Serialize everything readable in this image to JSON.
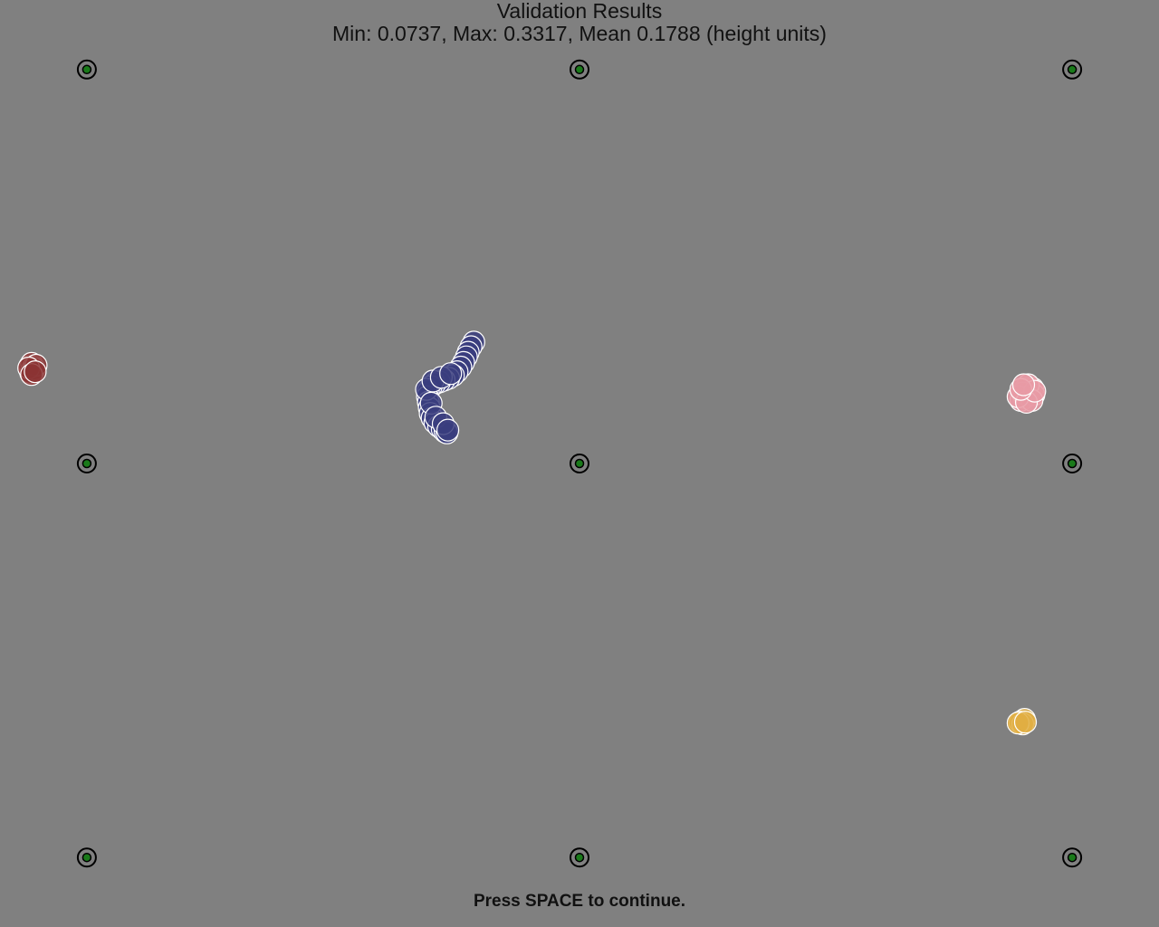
{
  "screen": {
    "title": "Validation Results",
    "stats": "Min: 0.0737, Max: 0.3317, Mean 0.1788 (height units)",
    "continue_prompt": "Press SPACE to continue."
  },
  "colors": {
    "background": "#808080",
    "target_ring": "#000000",
    "target_center": "#1a7a1a",
    "sample_outline": "#ffffff"
  },
  "chart_data": {
    "type": "scatter",
    "title": "",
    "xlabel": "",
    "ylabel": "",
    "xlim": [
      -0.625,
      0.625
    ],
    "ylim": [
      -0.5,
      0.5
    ],
    "grid": false,
    "legend": "none",
    "targets": [
      [
        -0.5313,
        0.425
      ],
      [
        0.0,
        0.425
      ],
      [
        0.5313,
        0.425
      ],
      [
        -0.5313,
        0.0
      ],
      [
        0.0,
        0.0
      ],
      [
        0.5313,
        0.0
      ],
      [
        -0.5313,
        -0.425
      ],
      [
        0.0,
        -0.425
      ],
      [
        0.5313,
        -0.425
      ]
    ],
    "series": [
      {
        "color": "#3a3d7e",
        "points": [
          [
            -0.114,
            0.131
          ],
          [
            -0.117,
            0.126
          ],
          [
            -0.12,
            0.12
          ],
          [
            -0.122,
            0.115
          ],
          [
            -0.125,
            0.109
          ],
          [
            -0.128,
            0.104
          ],
          [
            -0.132,
            0.099
          ],
          [
            -0.136,
            0.095
          ],
          [
            -0.141,
            0.092
          ],
          [
            -0.146,
            0.09
          ],
          [
            -0.151,
            0.088
          ],
          [
            -0.156,
            0.086
          ],
          [
            -0.16,
            0.083
          ],
          [
            -0.163,
            0.078
          ],
          [
            -0.164,
            0.072
          ],
          [
            -0.163,
            0.066
          ],
          [
            -0.162,
            0.06
          ],
          [
            -0.161,
            0.054
          ],
          [
            -0.159,
            0.049
          ],
          [
            -0.156,
            0.044
          ],
          [
            -0.152,
            0.04
          ],
          [
            -0.148,
            0.037
          ],
          [
            -0.145,
            0.034
          ],
          [
            -0.143,
            0.033
          ],
          [
            -0.165,
            0.08
          ],
          [
            -0.158,
            0.089
          ],
          [
            -0.149,
            0.093
          ],
          [
            -0.139,
            0.097
          ],
          [
            -0.16,
            0.065
          ],
          [
            -0.155,
            0.05
          ],
          [
            -0.147,
            0.043
          ],
          [
            -0.142,
            0.036
          ]
        ]
      },
      {
        "color": "#8b3434",
        "points": [
          [
            -0.593,
            0.105
          ],
          [
            -0.591,
            0.108
          ],
          [
            -0.589,
            0.104
          ],
          [
            -0.59,
            0.1
          ],
          [
            -0.592,
            0.098
          ],
          [
            -0.588,
            0.102
          ],
          [
            -0.586,
            0.106
          ],
          [
            -0.594,
            0.103
          ],
          [
            -0.591,
            0.096
          ],
          [
            -0.587,
            0.099
          ]
        ]
      },
      {
        "color": "#e89aa5",
        "points": [
          [
            0.481,
            0.081
          ],
          [
            0.485,
            0.077
          ],
          [
            0.489,
            0.081
          ],
          [
            0.486,
            0.074
          ],
          [
            0.48,
            0.071
          ],
          [
            0.476,
            0.068
          ],
          [
            0.49,
            0.074
          ],
          [
            0.484,
            0.085
          ],
          [
            0.478,
            0.076
          ],
          [
            0.488,
            0.068
          ],
          [
            0.473,
            0.072
          ],
          [
            0.482,
            0.066
          ],
          [
            0.491,
            0.078
          ],
          [
            0.476,
            0.08
          ],
          [
            0.479,
            0.085
          ]
        ]
      },
      {
        "color": "#e0ae42",
        "points": [
          [
            0.477,
            -0.278
          ],
          [
            0.48,
            -0.276
          ],
          [
            0.475,
            -0.279
          ],
          [
            0.478,
            -0.281
          ],
          [
            0.473,
            -0.28
          ],
          [
            0.481,
            -0.279
          ]
        ]
      }
    ]
  }
}
